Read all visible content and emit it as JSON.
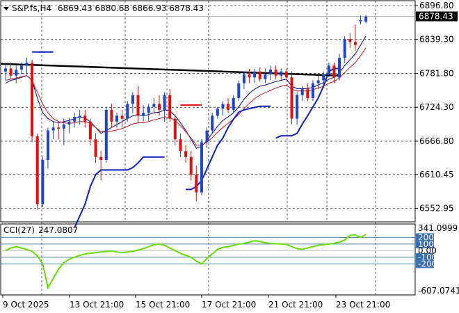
{
  "header": {
    "symbol": "S&P.fs,H4",
    "ohlc": "6869.43 6880.68 6866.93 6878.43"
  },
  "cci_panel": {
    "label": "CCI(27)",
    "value": "247.0807"
  },
  "colors": {
    "bull": "#1e44c8",
    "bear": "#e01010",
    "grid": "#222222",
    "trendline": "#000000",
    "fast_ma": "#00008b",
    "slow_ma": "#c81818",
    "supertrend": "#0a1fbf",
    "cci_line": "#66dd00",
    "cci_level": "#4a7fa0",
    "price_tag_bg": "#000000"
  },
  "chart_data": [
    {
      "type": "candlestick",
      "title": "S&P.fs,H4",
      "ylim": [
        6530,
        6905
      ],
      "y_ticks": [
        "6896.80",
        "6839.30",
        "6781.80",
        "6724.30",
        "6666.80",
        "6610.45",
        "6552.95"
      ],
      "current_price": "6878.43",
      "x_labels": [
        "9 Oct 2025",
        "13 Oct 21:00",
        "15 Oct 21:00",
        "17 Oct 21:00",
        "21 Oct 21:00",
        "23 Oct 21:00"
      ],
      "candles": [
        [
          6785,
          6798,
          6770,
          6790
        ],
        [
          6790,
          6800,
          6772,
          6778
        ],
        [
          6778,
          6795,
          6765,
          6788
        ],
        [
          6788,
          6800,
          6780,
          6795
        ],
        [
          6795,
          6808,
          6780,
          6800
        ],
        [
          6800,
          6805,
          6665,
          6675
        ],
        [
          6675,
          6680,
          6550,
          6560
        ],
        [
          6560,
          6640,
          6555,
          6635
        ],
        [
          6635,
          6690,
          6620,
          6685
        ],
        [
          6685,
          6700,
          6670,
          6690
        ],
        [
          6690,
          6698,
          6670,
          6688
        ],
        [
          6688,
          6705,
          6660,
          6695
        ],
        [
          6695,
          6706,
          6680,
          6700
        ],
        [
          6700,
          6715,
          6690,
          6708
        ],
        [
          6708,
          6720,
          6695,
          6710
        ],
        [
          6710,
          6720,
          6690,
          6700
        ],
        [
          6700,
          6705,
          6660,
          6670
        ],
        [
          6670,
          6680,
          6630,
          6640
        ],
        [
          6640,
          6650,
          6600,
          6635
        ],
        [
          6635,
          6725,
          6630,
          6720
        ],
        [
          6720,
          6730,
          6690,
          6700
        ],
        [
          6700,
          6715,
          6690,
          6710
        ],
        [
          6710,
          6720,
          6690,
          6705
        ],
        [
          6705,
          6735,
          6700,
          6730
        ],
        [
          6730,
          6750,
          6715,
          6745
        ],
        [
          6745,
          6760,
          6700,
          6710
        ],
        [
          6710,
          6728,
          6700,
          6715
        ],
        [
          6715,
          6730,
          6700,
          6725
        ],
        [
          6725,
          6740,
          6715,
          6730
        ],
        [
          6730,
          6745,
          6710,
          6720
        ],
        [
          6720,
          6750,
          6700,
          6745
        ],
        [
          6745,
          6755,
          6700,
          6705
        ],
        [
          6705,
          6710,
          6660,
          6670
        ],
        [
          6670,
          6680,
          6640,
          6650
        ],
        [
          6650,
          6660,
          6630,
          6640
        ],
        [
          6640,
          6650,
          6600,
          6610
        ],
        [
          6610,
          6625,
          6565,
          6580
        ],
        [
          6580,
          6670,
          6575,
          6665
        ],
        [
          6665,
          6690,
          6655,
          6685
        ],
        [
          6685,
          6715,
          6680,
          6710
        ],
        [
          6710,
          6725,
          6705,
          6722
        ],
        [
          6722,
          6735,
          6710,
          6730
        ],
        [
          6730,
          6740,
          6715,
          6720
        ],
        [
          6720,
          6745,
          6715,
          6740
        ],
        [
          6740,
          6770,
          6735,
          6765
        ],
        [
          6765,
          6785,
          6755,
          6780
        ],
        [
          6780,
          6790,
          6765,
          6775
        ],
        [
          6775,
          6790,
          6765,
          6785
        ],
        [
          6785,
          6792,
          6768,
          6772
        ],
        [
          6772,
          6790,
          6765,
          6780
        ],
        [
          6780,
          6795,
          6770,
          6788
        ],
        [
          6788,
          6795,
          6772,
          6778
        ],
        [
          6778,
          6790,
          6770,
          6785
        ],
        [
          6785,
          6790,
          6770,
          6775
        ],
        [
          6775,
          6785,
          6695,
          6705
        ],
        [
          6705,
          6750,
          6695,
          6745
        ],
        [
          6745,
          6760,
          6735,
          6755
        ],
        [
          6755,
          6765,
          6735,
          6740
        ],
        [
          6740,
          6770,
          6735,
          6765
        ],
        [
          6765,
          6778,
          6755,
          6770
        ],
        [
          6770,
          6785,
          6760,
          6780
        ],
        [
          6780,
          6800,
          6775,
          6795
        ],
        [
          6795,
          6800,
          6765,
          6775
        ],
        [
          6775,
          6815,
          6770,
          6808
        ],
        [
          6808,
          6845,
          6800,
          6840
        ],
        [
          6840,
          6850,
          6825,
          6835
        ],
        [
          6835,
          6865,
          6820,
          6830
        ],
        [
          6870,
          6880,
          6865,
          6872
        ],
        [
          6869.43,
          6880.68,
          6866.93,
          6878.43
        ]
      ],
      "series": [
        {
          "name": "",
          "kind": "fast_ma",
          "values": [
            6765,
            6770,
            6772,
            6775,
            6778,
            6770,
            6740,
            6715,
            6705,
            6700,
            6698,
            6700,
            6702,
            6705,
            6708,
            6706,
            6700,
            6690,
            6680,
            6685,
            6690,
            6695,
            6700,
            6705,
            6710,
            6712,
            6710,
            6712,
            6715,
            6716,
            6720,
            6718,
            6710,
            6698,
            6685,
            6670,
            6655,
            6658,
            6668,
            6680,
            6692,
            6702,
            6708,
            6715,
            6725,
            6738,
            6748,
            6755,
            6760,
            6762,
            6765,
            6768,
            6770,
            6772,
            6760,
            6756,
            6756,
            6756,
            6758,
            6762,
            6766,
            6772,
            6775,
            6783,
            6795,
            6805,
            6815,
            6830,
            6845
          ]
        },
        {
          "name": "",
          "kind": "slow_ma",
          "values": [
            6770,
            6772,
            6774,
            6776,
            6778,
            6770,
            6750,
            6730,
            6715,
            6705,
            6700,
            6698,
            6697,
            6698,
            6700,
            6700,
            6697,
            6690,
            6683,
            6682,
            6684,
            6686,
            6688,
            6692,
            6696,
            6698,
            6698,
            6700,
            6703,
            6705,
            6708,
            6707,
            6702,
            6693,
            6683,
            6672,
            6660,
            6660,
            6665,
            6673,
            6682,
            6690,
            6697,
            6704,
            6712,
            6722,
            6731,
            6739,
            6745,
            6749,
            6753,
            6757,
            6760,
            6762,
            6755,
            6752,
            6752,
            6752,
            6754,
            6757,
            6760,
            6765,
            6768,
            6774,
            6783,
            6792,
            6800,
            6812,
            6825
          ]
        },
        {
          "name": "",
          "kind": "supertrend_lower",
          "segments": [
            [
              [
                5,
                6818
              ],
              [
                6,
                6818
              ],
              [
                7,
                6818
              ],
              [
                8,
                6818
              ],
              [
                9,
                6818
              ]
            ],
            [
              [
                13,
                6520
              ],
              [
                14,
                6540
              ],
              [
                15,
                6560
              ],
              [
                16,
                6590
              ],
              [
                17,
                6610
              ],
              [
                18,
                6618
              ],
              [
                19,
                6618
              ],
              [
                20,
                6618
              ],
              [
                21,
                6618
              ],
              [
                22,
                6618
              ],
              [
                23,
                6618
              ],
              [
                24,
                6622
              ],
              [
                25,
                6630
              ],
              [
                26,
                6640
              ],
              [
                27,
                6640
              ],
              [
                28,
                6640
              ],
              [
                29,
                6640
              ],
              [
                30,
                6640
              ]
            ],
            [
              [
                34,
                6585
              ],
              [
                35,
                6585
              ],
              [
                36,
                6590
              ],
              [
                37,
                6600
              ],
              [
                38,
                6620
              ],
              [
                39,
                6640
              ],
              [
                40,
                6660
              ],
              [
                41,
                6672
              ],
              [
                42,
                6690
              ],
              [
                43,
                6704
              ],
              [
                44,
                6716
              ],
              [
                45,
                6720
              ],
              [
                46,
                6722
              ],
              [
                47,
                6724
              ],
              [
                48,
                6726
              ],
              [
                49,
                6726
              ],
              [
                50,
                6726
              ]
            ],
            [
              [
                51,
                6672
              ],
              [
                52,
                6676
              ],
              [
                53,
                6676
              ],
              [
                54,
                6676
              ],
              [
                55,
                6680
              ],
              [
                56,
                6696
              ],
              [
                57,
                6710
              ],
              [
                58,
                6725
              ],
              [
                59,
                6740
              ],
              [
                60,
                6760
              ],
              [
                61,
                6785
              ],
              [
                62,
                6790
              ],
              [
                63,
                6790
              ]
            ]
          ]
        },
        {
          "name": "",
          "kind": "supertrend_upper",
          "segments": [
            [
              [
                33,
                6728
              ],
              [
                34,
                6728
              ],
              [
                35,
                6728
              ],
              [
                36,
                6728
              ],
              [
                37,
                6728
              ]
            ]
          ]
        },
        {
          "name": "",
          "kind": "trendline",
          "points": [
            [
              -1,
              6798
            ],
            [
              63,
              6778
            ]
          ]
        }
      ]
    },
    {
      "type": "line",
      "title": "CCI(27) 247.0807",
      "ylim": [
        -607.0741,
        341.0999
      ],
      "y_ticks": [
        "341.0999",
        "200",
        "100",
        "0.00",
        "-100",
        "-200",
        "-607.0741"
      ],
      "levels": [
        200,
        100,
        0,
        -100,
        -200
      ],
      "values": [
        0,
        40,
        60,
        40,
        20,
        -10,
        -80,
        -200,
        -560,
        -420,
        -280,
        -180,
        -130,
        -100,
        -70,
        -50,
        -40,
        -30,
        -20,
        -10,
        -5,
        -20,
        -30,
        -20,
        -10,
        10,
        30,
        60,
        90,
        100,
        80,
        40,
        0,
        -40,
        -70,
        -100,
        -160,
        -200,
        -120,
        -50,
        20,
        50,
        60,
        80,
        100,
        110,
        130,
        150,
        140,
        120,
        110,
        105,
        100,
        95,
        60,
        30,
        20,
        40,
        60,
        80,
        90,
        100,
        110,
        130,
        160,
        230,
        240,
        200,
        247
      ]
    }
  ]
}
